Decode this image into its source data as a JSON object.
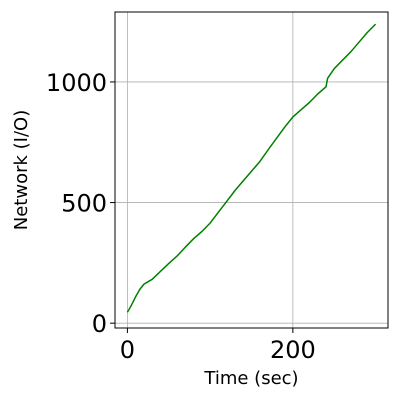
{
  "chart_data": {
    "type": "line",
    "xlabel": "Time (sec)",
    "ylabel": "Network (I/O)",
    "xlim": [
      -15,
      315
    ],
    "ylim": [
      -20,
      1290
    ],
    "xticks": [
      0,
      200
    ],
    "yticks": [
      0,
      500,
      1000
    ],
    "grid": true,
    "series": [
      {
        "color": "#008000",
        "x": [
          0,
          5,
          10,
          15,
          20,
          25,
          30,
          40,
          50,
          60,
          70,
          80,
          90,
          100,
          110,
          120,
          130,
          140,
          150,
          160,
          170,
          180,
          190,
          200,
          210,
          220,
          230,
          240,
          242,
          250,
          260,
          270,
          280,
          290,
          300
        ],
        "y": [
          45,
          75,
          110,
          140,
          162,
          172,
          182,
          215,
          248,
          278,
          315,
          350,
          380,
          415,
          460,
          505,
          550,
          590,
          630,
          670,
          718,
          765,
          812,
          855,
          885,
          915,
          950,
          980,
          1015,
          1055,
          1090,
          1125,
          1165,
          1205,
          1240
        ]
      }
    ]
  }
}
